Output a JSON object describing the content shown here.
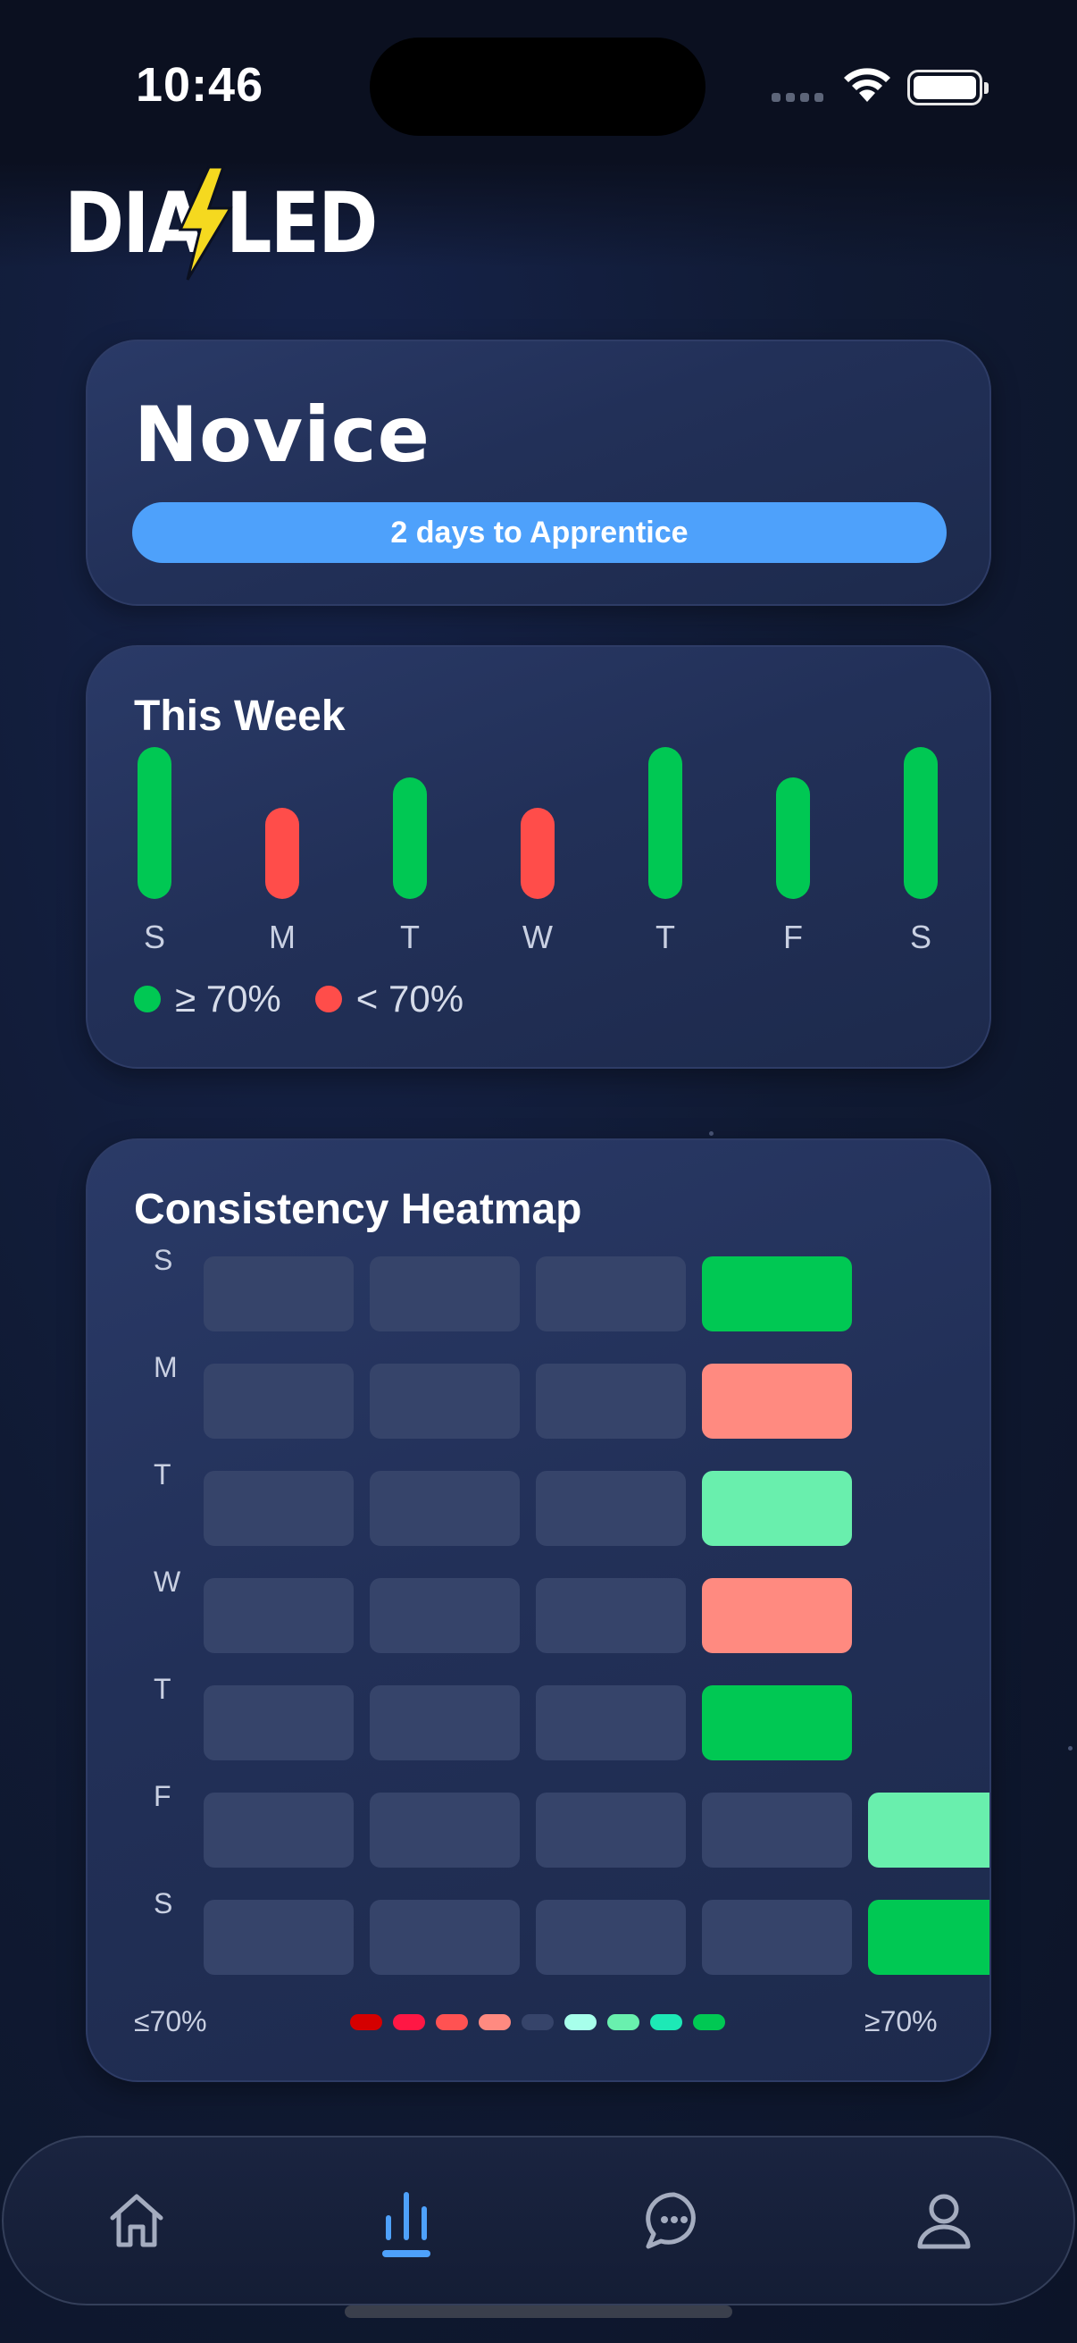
{
  "status_bar": {
    "time": "10:46"
  },
  "header": {
    "logo_text": "DIALLED",
    "logo_icon": "lightning-bolt-icon",
    "logo_accent_color": "#f5d91f"
  },
  "level_card": {
    "level": "Novice",
    "progress_label": "2 days to Apprentice",
    "accent_color": "#4ea1fb"
  },
  "week_card": {
    "title": "This Week",
    "days": [
      "S",
      "M",
      "T",
      "W",
      "T",
      "F",
      "S"
    ],
    "legend": [
      {
        "label": "≥ 70%",
        "color": "#00c853"
      },
      {
        "label": "< 70%",
        "color": "#ff4d4a"
      }
    ]
  },
  "chart_data": {
    "type": "bar",
    "categories": [
      "S",
      "M",
      "T",
      "W",
      "T",
      "F",
      "S"
    ],
    "values": [
      100,
      60,
      80,
      60,
      100,
      80,
      100
    ],
    "status": [
      "≥ 70%",
      "< 70%",
      "≥ 70%",
      "< 70%",
      "≥ 70%",
      "≥ 70%",
      "≥ 70%"
    ],
    "colors": {
      "≥ 70%": "#00c853",
      "< 70%": "#ff4d4a"
    },
    "ylim": [
      0,
      100
    ],
    "grid": false,
    "legend": "bottom-left"
  },
  "heatmap_card": {
    "title": "Consistency Heatmap",
    "days": [
      "S",
      "M",
      "T",
      "W",
      "T",
      "F",
      "S"
    ],
    "grid": [
      [
        "empty",
        "empty",
        "empty",
        "high"
      ],
      [
        "empty",
        "empty",
        "empty",
        "low-light"
      ],
      [
        "empty",
        "empty",
        "empty",
        "high-light"
      ],
      [
        "empty",
        "empty",
        "empty",
        "low-light"
      ],
      [
        "empty",
        "empty",
        "empty",
        "high"
      ],
      [
        "empty",
        "empty",
        "empty",
        "empty",
        "high-light"
      ],
      [
        "empty",
        "empty",
        "empty",
        "empty",
        "high"
      ]
    ],
    "cell_colors": {
      "empty": "#36446a",
      "high": "#00c853",
      "high-light": "#69efad",
      "low-light": "#ff8a80"
    },
    "scale_left": "≤70%",
    "scale_right": "≥70%",
    "scale_colors": [
      "#d50000",
      "#ff1744",
      "#ff5252",
      "#ff8a80",
      "#36446a",
      "#a7ffeb",
      "#69f0ae",
      "#1de9b6",
      "#00c853"
    ]
  },
  "tab_bar": {
    "tabs": [
      {
        "name": "home",
        "icon": "home-icon",
        "active": false
      },
      {
        "name": "stats",
        "icon": "bar-chart-icon",
        "active": true
      },
      {
        "name": "chat",
        "icon": "chat-bubble-icon",
        "active": false
      },
      {
        "name": "profile",
        "icon": "person-icon",
        "active": false
      }
    ],
    "active_color": "#4ea1fb",
    "inactive_color": "#a4acbf"
  }
}
